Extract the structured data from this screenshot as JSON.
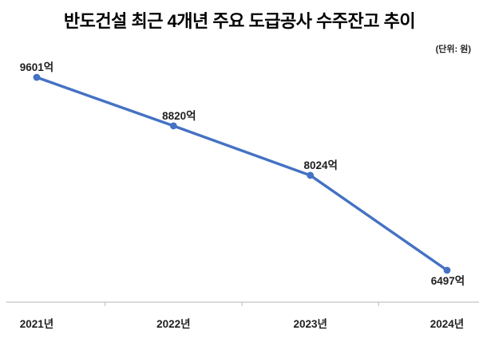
{
  "chart_data": {
    "type": "line",
    "title": "반도건설 최근 4개년 주요 도급공사 수주잔고 추이",
    "unit": "(단위: 원)",
    "categories": [
      "2021년",
      "2022년",
      "2023년",
      "2024년"
    ],
    "series_name": "수주잔고",
    "values": [
      9601,
      8820,
      8024,
      6497
    ],
    "value_labels": [
      "9601억",
      "8820억",
      "8024억",
      "6497억"
    ],
    "label_positions": [
      "above",
      "above",
      "above",
      "below"
    ],
    "grid": false,
    "legend": false,
    "line_color": "#4472C4",
    "marker_color": "#4472C4",
    "axis_color": "#C3C3C3",
    "text_color": "#1f1f1f",
    "title_color": "#000000"
  }
}
